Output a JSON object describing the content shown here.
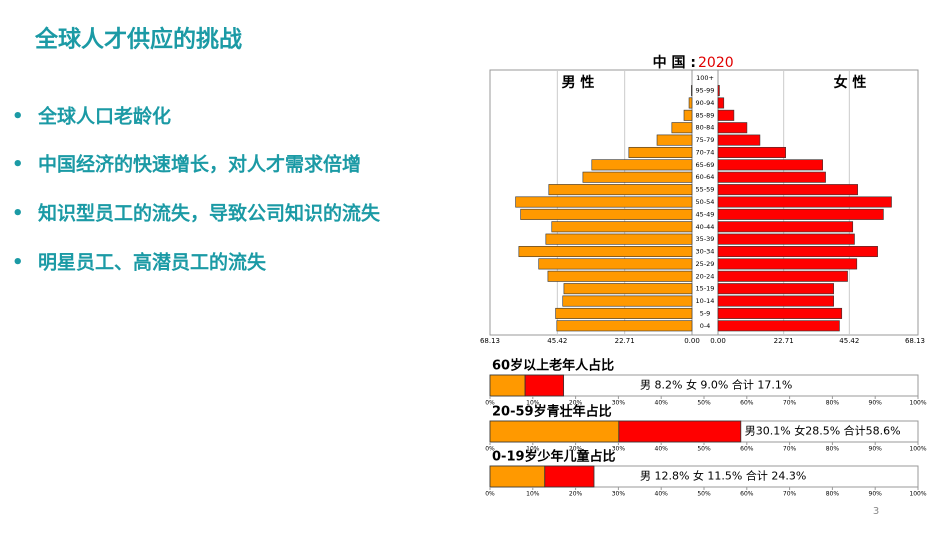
{
  "title": "全球人才供应的挑战",
  "bullets": [
    "全球人口老龄化",
    "中国经济的快速增长，对人才需求倍增",
    "知识型员工的流失，导致公司知识的流失",
    "明星员工、高潜员工的流失"
  ],
  "page_number": "3",
  "chart_data": [
    {
      "type": "pyramid",
      "title": "中 国 :",
      "subtitle": "2020",
      "categories": [
        "100+",
        "95-99",
        "90-94",
        "85-89",
        "80-84",
        "75-79",
        "70-74",
        "65-69",
        "60-64",
        "55-59",
        "50-54",
        "45-49",
        "40-44",
        "35-39",
        "30-34",
        "25-29",
        "20-24",
        "15-19",
        "10-14",
        "5-9",
        "0-4"
      ],
      "series": [
        {
          "name": "男 性",
          "color": "#ff9900",
          "values": [
            0,
            0.2,
            1.0,
            2.7,
            6.8,
            11.8,
            21.3,
            33.8,
            36.8,
            48.3,
            59.5,
            57.8,
            47.3,
            49.3,
            58.4,
            51.7,
            48.6,
            43.2,
            43.6,
            46.0,
            45.6
          ]
        },
        {
          "name": "女 性",
          "color": "#ff0000",
          "values": [
            0,
            0.5,
            2.0,
            5.5,
            10.0,
            14.5,
            23.4,
            36.2,
            37.2,
            48.3,
            60.0,
            57.2,
            46.6,
            47.2,
            55.2,
            48.0,
            44.8,
            40.0,
            40.0,
            42.8,
            42.0
          ]
        }
      ],
      "xlim": [
        0,
        68.13
      ],
      "xticks": [
        {
          "value": 0,
          "label": "0.00"
        },
        22.71,
        45.42,
        68.13
      ],
      "grid": true
    },
    {
      "type": "bar",
      "title": "60岁以上老年人占比",
      "annotation": "男 8.2%  女 9.0%  合计 17.1%",
      "series": [
        {
          "name": "男",
          "color": "#ff9900",
          "values": [
            8.2
          ]
        },
        {
          "name": "女",
          "color": "#ff0000",
          "values": [
            9.0
          ]
        }
      ],
      "xlim": [
        0,
        100
      ],
      "xticks": [
        {
          "value": 0,
          "label": "0%"
        },
        {
          "value": 10,
          "label": "10%"
        },
        {
          "value": 20,
          "label": "20%"
        },
        {
          "value": 30,
          "label": "30%"
        },
        {
          "value": 40,
          "label": "40%"
        },
        {
          "value": 50,
          "label": "50%"
        },
        {
          "value": 60,
          "label": "60%"
        },
        {
          "value": 70,
          "label": "70%"
        },
        {
          "value": 80,
          "label": "80%"
        },
        {
          "value": 90,
          "label": "90%"
        },
        {
          "value": 100,
          "label": "100%"
        }
      ]
    },
    {
      "type": "bar",
      "title": "20-59岁青壮年占比",
      "annotation": "男30.1%  女28.5%  合计58.6%",
      "series": [
        {
          "name": "男",
          "color": "#ff9900",
          "values": [
            30.1
          ]
        },
        {
          "name": "女",
          "color": "#ff0000",
          "values": [
            28.5
          ]
        }
      ],
      "xlim": [
        0,
        100
      ],
      "xticks": [
        {
          "value": 0,
          "label": "0%"
        },
        {
          "value": 10,
          "label": "10%"
        },
        {
          "value": 20,
          "label": "20%"
        },
        {
          "value": 30,
          "label": "30%"
        },
        {
          "value": 40,
          "label": "40%"
        },
        {
          "value": 50,
          "label": "50%"
        },
        {
          "value": 60,
          "label": "60%"
        },
        {
          "value": 70,
          "label": "70%"
        },
        {
          "value": 80,
          "label": "80%"
        },
        {
          "value": 90,
          "label": "90%"
        },
        {
          "value": 100,
          "label": "100%"
        }
      ]
    },
    {
      "type": "bar",
      "title": "0-19岁少年儿童占比",
      "annotation": "男 12.8%  女 11.5%  合计  24.3%",
      "series": [
        {
          "name": "男",
          "color": "#ff9900",
          "values": [
            12.8
          ]
        },
        {
          "name": "女",
          "color": "#ff0000",
          "values": [
            11.5
          ]
        }
      ],
      "xlim": [
        0,
        100
      ],
      "xticks": [
        {
          "value": 0,
          "label": "0%"
        },
        {
          "value": 10,
          "label": "10%"
        },
        {
          "value": 20,
          "label": "20%"
        },
        {
          "value": 30,
          "label": "30%"
        },
        {
          "value": 40,
          "label": "40%"
        },
        {
          "value": 50,
          "label": "50%"
        },
        {
          "value": 60,
          "label": "60%"
        },
        {
          "value": 70,
          "label": "70%"
        },
        {
          "value": 80,
          "label": "80%"
        },
        {
          "value": 90,
          "label": "90%"
        },
        {
          "value": 100,
          "label": "100%"
        }
      ]
    }
  ]
}
